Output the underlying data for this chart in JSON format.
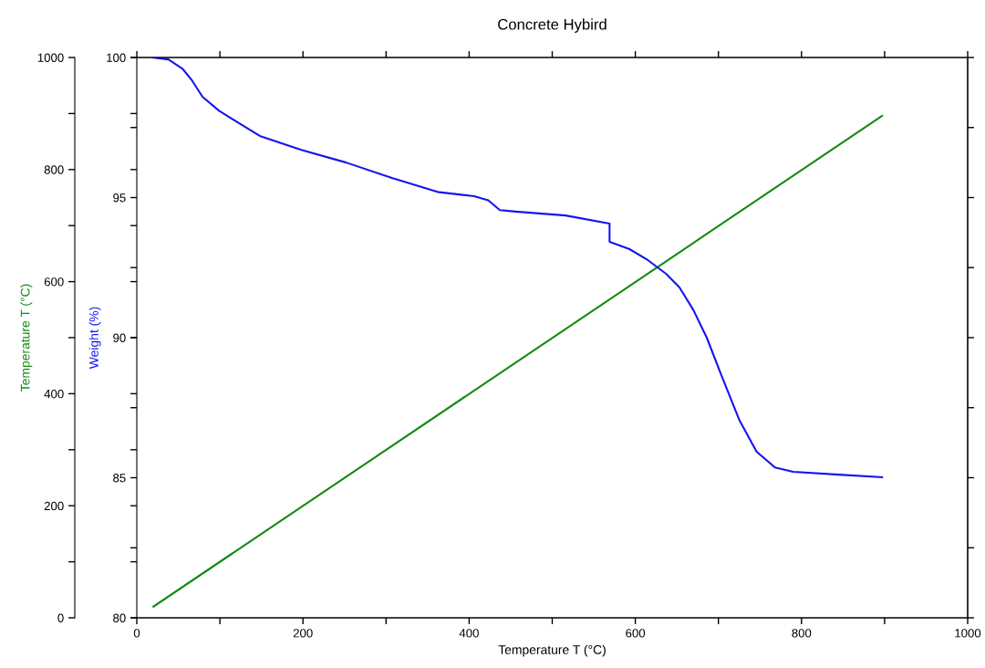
{
  "chart_data": {
    "type": "line",
    "title": "Concrete Hybird",
    "xlabel": "Temperature T (°C)",
    "ylabel": "Temperature T (°C)",
    "y2label": "Weight (%)",
    "xlim": [
      0,
      1000
    ],
    "xticks": [
      0,
      {
        "value": 100,
        "label": null
      },
      200,
      {
        "value": 300,
        "label": null
      },
      400,
      {
        "value": 500,
        "label": null
      },
      600,
      {
        "value": 700,
        "label": null
      },
      800,
      {
        "value": 900,
        "label": null
      },
      1000
    ],
    "ylim": [
      0,
      1000
    ],
    "yticks": [
      0,
      {
        "value": 100,
        "label": null
      },
      200,
      {
        "value": 300,
        "label": null
      },
      400,
      {
        "value": 500,
        "label": null
      },
      600,
      {
        "value": 700,
        "label": null
      },
      800,
      {
        "value": 900,
        "label": null
      },
      1000
    ],
    "y2lim": [
      80,
      100
    ],
    "y2ticks": [
      80,
      {
        "value": 82.5,
        "label": null
      },
      85,
      {
        "value": 87.5,
        "label": null
      },
      90,
      {
        "value": 92.5,
        "label": null
      },
      95,
      {
        "value": 97.5,
        "label": null
      },
      100
    ],
    "grid": false,
    "legend": false,
    "marker": "none",
    "line_style": "solid",
    "series": [
      {
        "color": "#1414f0",
        "axis": "y2",
        "x": [
          20,
          38,
          55,
          66,
          79,
          99,
          126,
          148,
          198,
          252,
          307,
          362,
          406,
          423,
          437,
          456,
          516,
          569,
          569,
          593,
          615,
          637,
          653,
          670,
          686,
          703,
          725,
          746,
          768,
          790,
          845,
          897
        ],
        "values": [
          100,
          99.93,
          99.6,
          99.2,
          98.6,
          98.1,
          97.6,
          97.2,
          96.7,
          96.25,
          95.7,
          95.2,
          95.05,
          94.9,
          94.55,
          94.5,
          94.36,
          94.07,
          93.42,
          93.16,
          92.77,
          92.28,
          91.8,
          90.98,
          90.0,
          88.7,
          87.07,
          85.93,
          85.37,
          85.21,
          85.11,
          85.02
        ]
      },
      {
        "color": "#138a13",
        "x": [
          20,
          897
        ],
        "values": [
          20,
          896
        ]
      }
    ]
  }
}
